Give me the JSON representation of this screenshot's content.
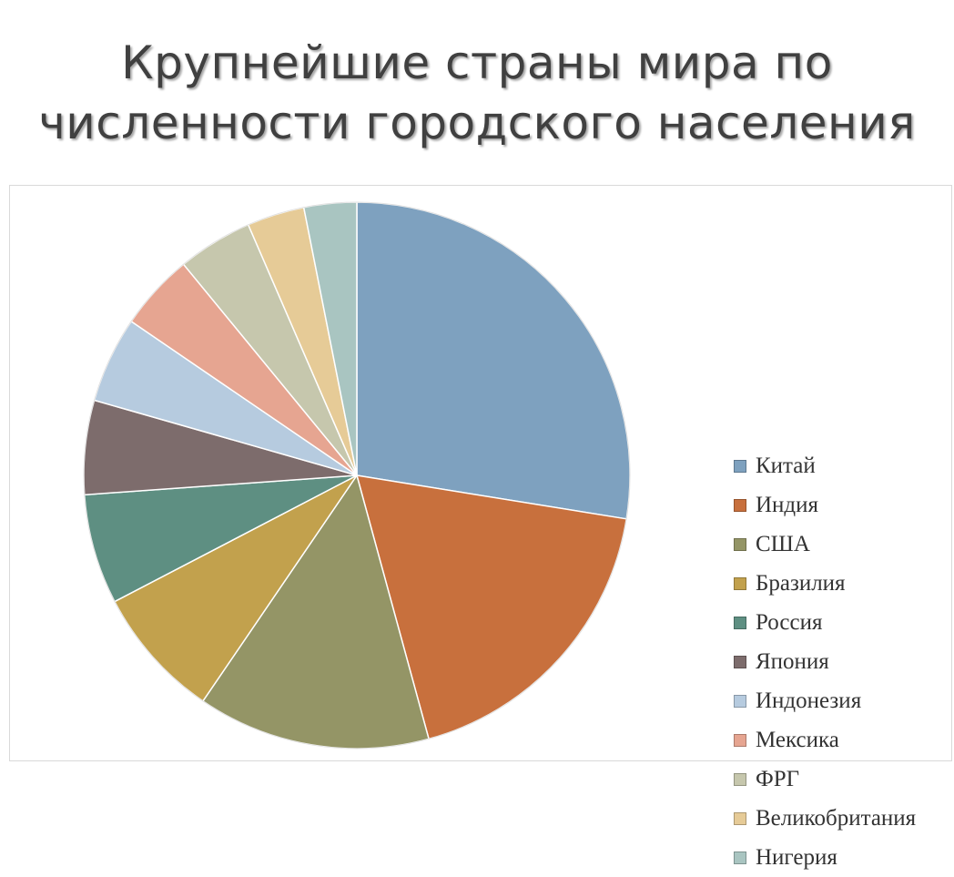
{
  "title": {
    "line1": "Крупнейшие страны мира по",
    "line2": "численности городского населения"
  },
  "chart_data": {
    "type": "pie",
    "title": "Крупнейшие страны мира по численности городского населения",
    "start": "12 o'clock",
    "direction": "clockwise",
    "legend_position": "right",
    "slices": [
      {
        "label": "Китай",
        "value": 29.2,
        "color": "#7ea1bf"
      },
      {
        "label": "Индия",
        "value": 19.3,
        "color": "#c8703d"
      },
      {
        "label": "США",
        "value": 14.6,
        "color": "#949566"
      },
      {
        "label": "Бразилия",
        "value": 8.3,
        "color": "#c2a14d"
      },
      {
        "label": "Россия",
        "value": 6.9,
        "color": "#5e8f82"
      },
      {
        "label": "Япония",
        "value": 5.9,
        "color": "#7d6c6c"
      },
      {
        "label": "Индонезия",
        "value": 5.4,
        "color": "#b6cbdf"
      },
      {
        "label": "Мексика",
        "value": 4.8,
        "color": "#e6a591"
      },
      {
        "label": "ФРГ",
        "value": 4.7,
        "color": "#c6c7ad"
      },
      {
        "label": "Великобритания",
        "value": 3.6,
        "color": "#e6cb97"
      },
      {
        "label": "Нигерия",
        "value": 3.3,
        "color": "#a9c5c1"
      }
    ]
  }
}
